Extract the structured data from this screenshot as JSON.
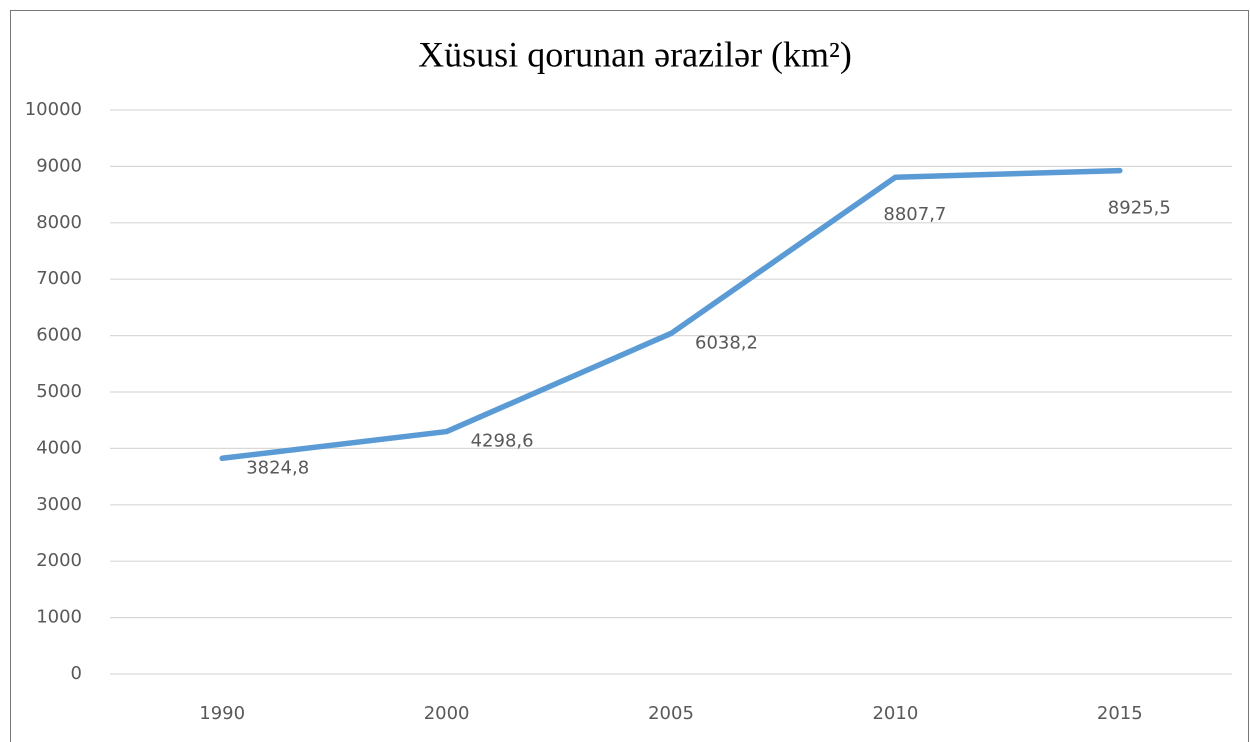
{
  "chart_data": {
    "type": "line",
    "title": "Xüsusi qorunan ərazilər (km²)",
    "categories": [
      "1990",
      "2000",
      "2005",
      "2010",
      "2015"
    ],
    "values": [
      3824.8,
      4298.6,
      6038.2,
      8807.7,
      8925.5
    ],
    "value_labels": [
      "3824,8",
      "4298,6",
      "6038,2",
      "8807,7",
      "8925,5"
    ],
    "color": "#5b9bd5",
    "ylim": [
      0,
      10000
    ],
    "yticks": [
      0,
      1000,
      2000,
      3000,
      4000,
      5000,
      6000,
      7000,
      8000,
      9000,
      10000
    ],
    "grid": true
  }
}
